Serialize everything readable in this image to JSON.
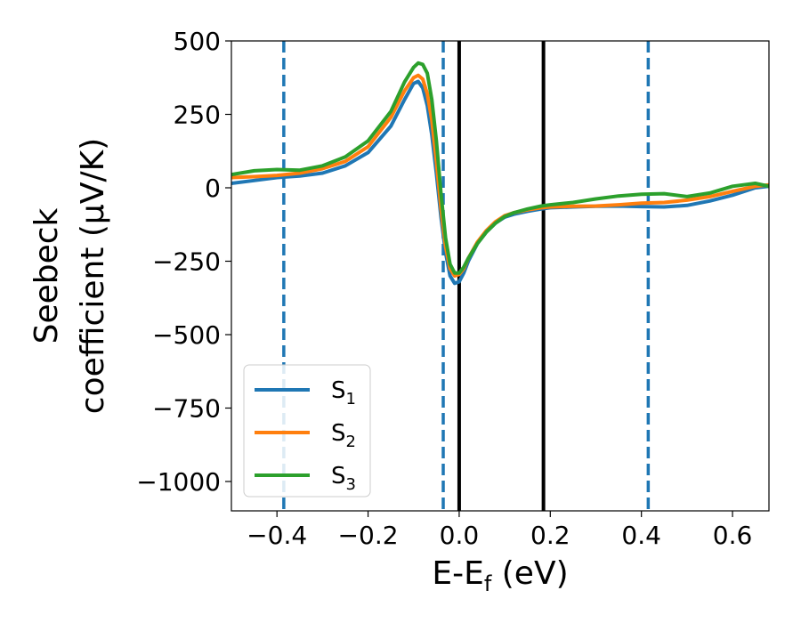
{
  "chart_data": {
    "type": "line",
    "title": "",
    "xlabel": "E-E",
    "xlabel_sub": "f",
    "xlabel_unit": " (eV)",
    "ylabel_line1": "Seebeck",
    "ylabel_line2": "coefficient  (μV/K)",
    "xlim": [
      -0.5,
      0.68
    ],
    "ylim": [
      -1100,
      500
    ],
    "x_ticks": [
      -0.4,
      -0.2,
      0.0,
      0.2,
      0.4,
      0.6
    ],
    "x_tick_labels": [
      "−0.4",
      "−0.2",
      "0.0",
      "0.2",
      "0.4",
      "0.6"
    ],
    "y_ticks": [
      500,
      250,
      0,
      -250,
      -500,
      -750,
      -1000
    ],
    "y_tick_labels": [
      "500",
      "250",
      "0",
      "−250",
      "−500",
      "−750",
      "−1000"
    ],
    "grid": false,
    "legend_placement": "bottom-left",
    "vertical_lines": [
      {
        "x": -0.385,
        "style": "dashed",
        "color": "#1f77b4"
      },
      {
        "x": -0.035,
        "style": "dashed",
        "color": "#1f77b4"
      },
      {
        "x": 0.0,
        "style": "solid",
        "color": "#000000"
      },
      {
        "x": 0.185,
        "style": "solid",
        "color": "#000000"
      },
      {
        "x": 0.415,
        "style": "dashed",
        "color": "#1f77b4"
      }
    ],
    "series": [
      {
        "name": "S",
        "sub": "1",
        "color": "#1f77b4",
        "x": [
          -0.5,
          -0.45,
          -0.4,
          -0.35,
          -0.3,
          -0.25,
          -0.2,
          -0.15,
          -0.12,
          -0.1,
          -0.09,
          -0.08,
          -0.07,
          -0.06,
          -0.05,
          -0.04,
          -0.03,
          -0.02,
          -0.01,
          0.0,
          0.01,
          0.02,
          0.04,
          0.06,
          0.08,
          0.1,
          0.12,
          0.15,
          0.18,
          0.2,
          0.25,
          0.3,
          0.35,
          0.4,
          0.45,
          0.5,
          0.55,
          0.6,
          0.65,
          0.68
        ],
        "y": [
          15,
          25,
          35,
          40,
          50,
          75,
          120,
          210,
          300,
          355,
          362,
          340,
          280,
          180,
          50,
          -100,
          -220,
          -300,
          -325,
          -320,
          -290,
          -250,
          -190,
          -150,
          -120,
          -100,
          -90,
          -80,
          -72,
          -68,
          -65,
          -63,
          -62,
          -64,
          -65,
          -60,
          -45,
          -25,
          0,
          5
        ]
      },
      {
        "name": "S",
        "sub": "2",
        "color": "#ff7f0e",
        "x": [
          -0.5,
          -0.45,
          -0.4,
          -0.35,
          -0.3,
          -0.25,
          -0.2,
          -0.15,
          -0.12,
          -0.1,
          -0.09,
          -0.08,
          -0.07,
          -0.06,
          -0.05,
          -0.04,
          -0.03,
          -0.02,
          -0.01,
          0.0,
          0.01,
          0.02,
          0.04,
          0.06,
          0.08,
          0.1,
          0.12,
          0.15,
          0.18,
          0.2,
          0.25,
          0.3,
          0.35,
          0.4,
          0.45,
          0.5,
          0.55,
          0.6,
          0.65,
          0.68
        ],
        "y": [
          35,
          38,
          42,
          50,
          65,
          90,
          140,
          240,
          330,
          375,
          383,
          370,
          320,
          230,
          90,
          -70,
          -200,
          -275,
          -300,
          -295,
          -275,
          -240,
          -185,
          -145,
          -115,
          -95,
          -85,
          -75,
          -68,
          -65,
          -63,
          -62,
          -58,
          -52,
          -50,
          -42,
          -30,
          -12,
          5,
          10
        ]
      },
      {
        "name": "S",
        "sub": "3",
        "color": "#2ca02c",
        "x": [
          -0.5,
          -0.45,
          -0.4,
          -0.35,
          -0.3,
          -0.25,
          -0.2,
          -0.15,
          -0.12,
          -0.1,
          -0.09,
          -0.08,
          -0.07,
          -0.06,
          -0.05,
          -0.04,
          -0.03,
          -0.02,
          -0.01,
          0.0,
          0.01,
          0.02,
          0.04,
          0.06,
          0.08,
          0.1,
          0.12,
          0.15,
          0.18,
          0.2,
          0.25,
          0.3,
          0.35,
          0.4,
          0.45,
          0.5,
          0.55,
          0.6,
          0.65,
          0.68
        ],
        "y": [
          45,
          58,
          62,
          60,
          75,
          105,
          160,
          260,
          360,
          410,
          425,
          420,
          390,
          300,
          160,
          -20,
          -170,
          -260,
          -290,
          -290,
          -270,
          -240,
          -190,
          -150,
          -120,
          -98,
          -85,
          -72,
          -62,
          -58,
          -50,
          -38,
          -28,
          -22,
          -20,
          -30,
          -18,
          5,
          15,
          5
        ]
      }
    ]
  }
}
